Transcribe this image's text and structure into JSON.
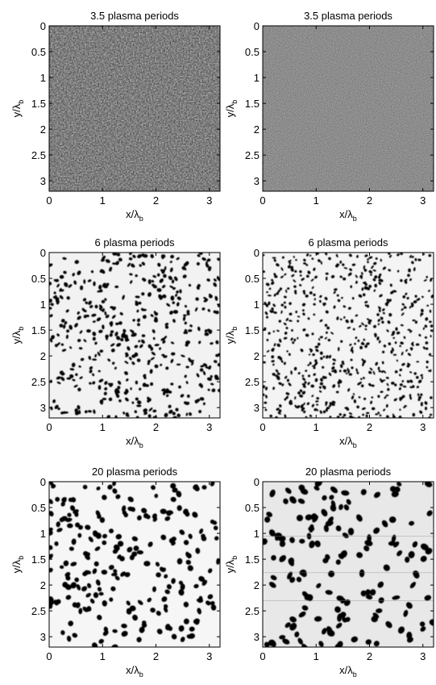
{
  "chart_data": [
    {
      "type": "heatmap",
      "title": "3.5 plasma periods",
      "xlabel": "x/λ",
      "xlabel_sub": "b",
      "ylabel": "y/λ",
      "ylabel_sub": "b",
      "xlim": [
        0,
        3.2
      ],
      "ylim": [
        0,
        3.2
      ],
      "y_axis_reversed": true,
      "xticks": [
        "0",
        "1",
        "2",
        "3"
      ],
      "yticks": [
        "0",
        "0.5",
        "1",
        "1.5",
        "2",
        "2.5",
        "3"
      ],
      "colormap": "grayscale",
      "pattern": "fine-noise",
      "background_gray": "#b3b3b3"
    },
    {
      "type": "heatmap",
      "title": "3.5 plasma periods",
      "xlabel": "x/λ",
      "xlabel_sub": "b",
      "ylabel": "y/λ",
      "ylabel_sub": "b",
      "xlim": [
        0,
        3.2
      ],
      "ylim": [
        0,
        3.2
      ],
      "y_axis_reversed": true,
      "xticks": [
        "0",
        "1",
        "2",
        "3"
      ],
      "yticks": [
        "0",
        "0.5",
        "1",
        "1.5",
        "2",
        "2.5",
        "3"
      ],
      "colormap": "grayscale",
      "pattern": "very-fine-noise",
      "background_gray": "#b5b5b5"
    },
    {
      "type": "heatmap",
      "title": "6 plasma periods",
      "xlabel": "x/λ",
      "xlabel_sub": "b",
      "ylabel": "y/λ",
      "ylabel_sub": "b",
      "xlim": [
        0,
        3.2
      ],
      "ylim": [
        0,
        3.2
      ],
      "y_axis_reversed": true,
      "xticks": [
        "0",
        "1",
        "2",
        "3"
      ],
      "yticks": [
        "0",
        "0.5",
        "1",
        "1.5",
        "2",
        "2.5",
        "3"
      ],
      "colormap": "grayscale",
      "pattern": "dark-filaments",
      "approx_filament_count": 460,
      "background_gray": "#f2f2f2"
    },
    {
      "type": "heatmap",
      "title": "6 plasma periods",
      "xlabel": "x/λ",
      "xlabel_sub": "b",
      "ylabel": "y/λ",
      "ylabel_sub": "b",
      "xlim": [
        0,
        3.2
      ],
      "ylim": [
        0,
        3.2
      ],
      "y_axis_reversed": true,
      "xticks": [
        "0",
        "1",
        "2",
        "3"
      ],
      "yticks": [
        "0",
        "0.5",
        "1",
        "1.5",
        "2",
        "2.5",
        "3"
      ],
      "colormap": "grayscale",
      "pattern": "dark-filaments",
      "approx_filament_count": 620,
      "background_gray": "#f4f4f4"
    },
    {
      "type": "heatmap",
      "title": "20 plasma periods",
      "xlabel": "x/λ",
      "xlabel_sub": "b",
      "ylabel": "y/λ",
      "ylabel_sub": "b",
      "xlim": [
        0,
        3.2
      ],
      "ylim": [
        0,
        3.2
      ],
      "y_axis_reversed": true,
      "xticks": [
        "0",
        "1",
        "2",
        "3"
      ],
      "yticks": [
        "0",
        "0.5",
        "1",
        "1.5",
        "2",
        "2.5",
        "3"
      ],
      "colormap": "grayscale",
      "pattern": "dark-filaments",
      "approx_filament_count": 230,
      "background_gray": "#f6f6f6"
    },
    {
      "type": "heatmap",
      "title": "20 plasma periods",
      "xlabel": "x/λ",
      "xlabel_sub": "b",
      "ylabel": "y/λ",
      "ylabel_sub": "b",
      "xlim": [
        0,
        3.2
      ],
      "ylim": [
        0,
        3.2
      ],
      "y_axis_reversed": true,
      "xticks": [
        "0",
        "1",
        "2",
        "3"
      ],
      "yticks": [
        "0",
        "0.5",
        "1",
        "1.5",
        "2",
        "2.5",
        "3"
      ],
      "colormap": "grayscale",
      "pattern": "dark-filaments",
      "approx_filament_count": 150,
      "background_gray": "#e8e8e8"
    }
  ]
}
